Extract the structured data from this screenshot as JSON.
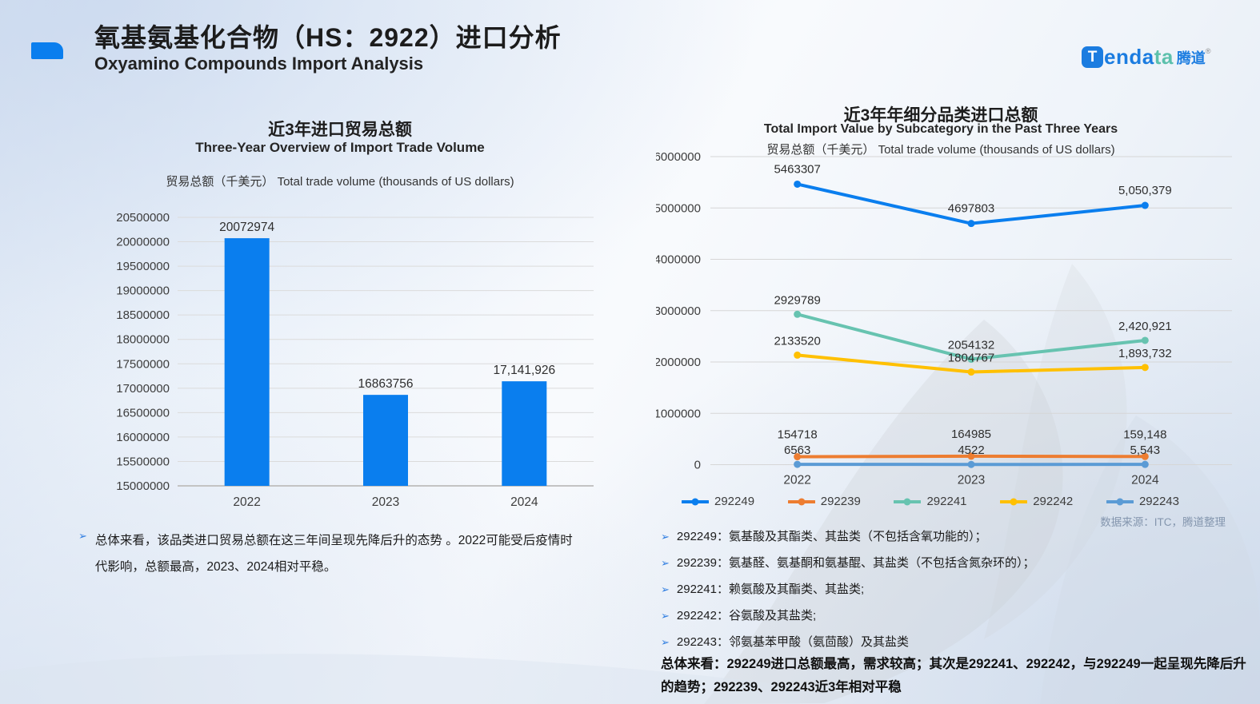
{
  "header": {
    "title_cn": "氧基氨基化合物（HS：2922）进口分析",
    "title_en": "Oxyamino Compounds Import Analysis",
    "logo": {
      "t": "T",
      "part_blue": "enda",
      "part_teal": "ta",
      "cn": "腾道",
      "reg": "®"
    }
  },
  "colors": {
    "accent_blue": "#0a7eee",
    "orange": "#ed7d31",
    "teal": "#67c3b0",
    "gold": "#ffc000",
    "steel_blue": "#5b9bd5",
    "logo_blue": "#1b7ce0",
    "logo_teal": "#5cc0ac"
  },
  "chart_data": [
    {
      "type": "bar",
      "title": "近3年进口贸易总额",
      "subtitle": "Three-Year Overview of Import Trade Volume",
      "unit_label": "贸易总额（千美元）  Total trade volume (thousands of US dollars)",
      "categories": [
        "2022",
        "2023",
        "2024"
      ],
      "values": [
        20072974,
        16863756,
        17141926
      ],
      "value_labels": [
        "20072974",
        "16863756",
        "17,141,926"
      ],
      "ylim": [
        15000000,
        20500000
      ],
      "ytick_step": 500000,
      "bar_color": "#0a7eee",
      "grid": true,
      "note": "总体来看，该品类进口贸易总额在这三年间呈现先降后升的态势 。2022可能受后疫情时代影响，总额最高，2023、2024相对平稳。"
    },
    {
      "type": "line",
      "title": "近3年年细分品类进口总额",
      "subtitle": "Total Import Value by Subcategory in the Past Three Years",
      "unit_label": "贸易总额（千美元）  Total trade volume (thousands of US dollars)",
      "x": [
        "2022",
        "2023",
        "2024"
      ],
      "ylim": [
        0,
        6000000
      ],
      "ytick_step": 1000000,
      "grid": true,
      "legend_position": "bottom",
      "series": [
        {
          "name": "292249",
          "color": "#0a7eee",
          "values": [
            5463307,
            4697803,
            5050379
          ],
          "labels": [
            "5463307",
            "4697803",
            "5,050,379"
          ]
        },
        {
          "name": "292239",
          "color": "#ed7d31",
          "values": [
            154718,
            164985,
            159148
          ],
          "labels": [
            "154718",
            "164985",
            "159,148"
          ]
        },
        {
          "name": "292241",
          "color": "#67c3b0",
          "values": [
            2929789,
            2054132,
            2420921
          ],
          "labels": [
            "2929789",
            "2054132",
            "2,420,921"
          ]
        },
        {
          "name": "292242",
          "color": "#ffc000",
          "values": [
            2133520,
            1804767,
            1893732
          ],
          "labels": [
            "2133520",
            "1804767",
            "1,893,732"
          ]
        },
        {
          "name": "292243",
          "color": "#5b9bd5",
          "values": [
            6563,
            4522,
            5543
          ],
          "labels": [
            "6563",
            "4522",
            "5,543"
          ]
        }
      ],
      "source": "数据来源：ITC，腾道整理",
      "category_definitions": [
        "292249：氨基酸及其酯类、其盐类（不包括含氧功能的）；",
        "292239：氨基醛、氨基酮和氨基醌、其盐类（不包括含氮杂环的）；",
        "292241：赖氨酸及其酯类、其盐类;",
        "292242：谷氨酸及其盐类;",
        "292243：邻氨基苯甲酸（氨茴酸）及其盐类"
      ],
      "summary": "总体来看：292249进口总额最高，需求较高；其次是292241、292242，与292249一起呈现先降后升的趋势；292239、292243近3年相对平稳"
    }
  ]
}
